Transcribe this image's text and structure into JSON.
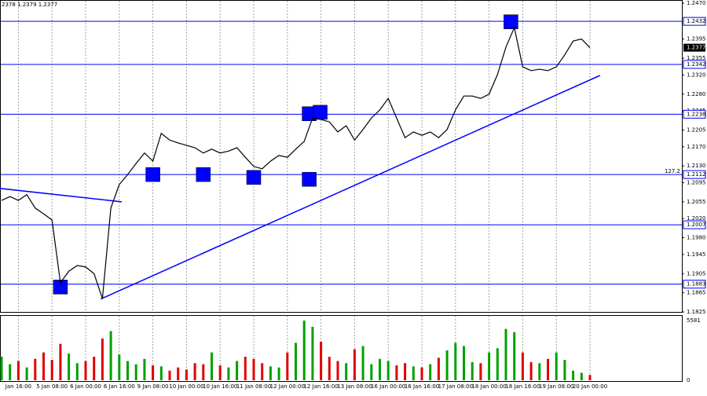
{
  "chart_data": {
    "type": "line",
    "header": "2378 1.2379 1.2377",
    "categories": [
      null,
      null,
      "Jan 16:00",
      null,
      null,
      null,
      "5 Jan 08:00",
      null,
      null,
      null,
      "6 Jan 00:00",
      null,
      null,
      null,
      "6 Jan 16:00",
      null,
      null,
      null,
      "9 Jan 08:00",
      null,
      null,
      null,
      "10 Jan 00:00",
      null,
      null,
      null,
      "10 Jan 16:00",
      null,
      null,
      null,
      "11 Jan 08:00",
      null,
      null,
      null,
      "12 Jan 00:00",
      null,
      null,
      null,
      "12 Jan 16:00",
      null,
      null,
      null,
      "13 Jan 08:00",
      null,
      null,
      null,
      "16 Jan 00:00",
      null,
      null,
      null,
      "16 Jan 16:00",
      null,
      null,
      null,
      "17 Jan 08:00",
      null,
      null,
      null,
      "18 Jan 00:00",
      null,
      null,
      null,
      "18 Jan 16:00",
      null,
      null,
      null,
      "19 Jan 08:00",
      null,
      null,
      null,
      "20 Jan 00:00"
    ],
    "values": [
      1.2058,
      1.2066,
      1.2058,
      1.207,
      1.2042,
      1.203,
      1.2017,
      1.1886,
      1.191,
      1.1922,
      1.1919,
      1.1905,
      1.1853,
      1.2042,
      1.2091,
      1.2112,
      1.2135,
      1.2157,
      1.214,
      1.2198,
      1.2184,
      1.2178,
      1.2173,
      1.2168,
      1.2157,
      1.2165,
      1.2157,
      1.2161,
      1.2168,
      1.2148,
      1.2129,
      1.2124,
      1.214,
      1.2152,
      1.2148,
      1.2165,
      1.2181,
      1.223,
      1.2227,
      1.2222,
      1.2201,
      1.2214,
      1.2184,
      1.2206,
      1.223,
      1.2247,
      1.2271,
      1.223,
      1.2189,
      1.2201,
      1.2194,
      1.2201,
      1.2189,
      1.2206,
      1.2247,
      1.2276,
      1.2276,
      1.2271,
      1.228,
      1.2321,
      1.2378,
      1.2419,
      1.2337,
      1.2329,
      1.2332,
      1.2329,
      1.2337,
      1.2362,
      1.2391,
      1.2395,
      1.2377
    ],
    "color": "#000000",
    "ylim": [
      1.1825,
      1.247
    ],
    "yticks": [
      {
        "value": 1.247,
        "label": "1.2470"
      },
      1.2395,
      1.2355,
      {
        "value": 1.232,
        "label": "1.2320"
      },
      {
        "value": 1.228,
        "label": "1.2280"
      },
      1.2245,
      1.2205,
      {
        "value": 1.217,
        "label": "1.2170"
      },
      {
        "value": 1.213,
        "label": "1.2130"
      },
      1.2095,
      1.2055,
      {
        "value": 1.202,
        "label": "1.2020"
      },
      {
        "value": 1.198,
        "label": "1.1980"
      },
      1.1945,
      1.1905,
      1.1865,
      1.1825
    ],
    "levels": [
      1.2432,
      1.2342,
      1.2238,
      1.2112,
      1.2007,
      1.1883
    ],
    "level_color": "#0000ff",
    "current_price": 1.2377,
    "annotation": "127.2",
    "markers": {
      "x": [
        7,
        18,
        24,
        30,
        36.6,
        36.6,
        37.9,
        60.6
      ],
      "y": [
        1.1877,
        1.2112,
        1.2112,
        1.2106,
        1.2102,
        1.2239,
        1.2242,
        1.2431
      ],
      "color": "#0000ff"
    },
    "trendlines": [
      {
        "x": [
          11.8,
          71.2
        ],
        "y": [
          1.1852,
          1.2319
        ]
      },
      {
        "x": [
          -0.2,
          14.3
        ],
        "y": [
          1.2083,
          1.2055
        ]
      }
    ],
    "volume": [
      2200,
      1500,
      1800,
      1200,
      2000,
      2600,
      1900,
      3400,
      2500,
      1600,
      1800,
      2200,
      3900,
      4600,
      2400,
      1800,
      1500,
      2000,
      1400,
      1300,
      900,
      1200,
      1000,
      1600,
      1500,
      2600,
      1400,
      1200,
      1800,
      2200,
      2000,
      1600,
      1300,
      1200,
      2600,
      3500,
      5581,
      5000,
      3600,
      2200,
      1800,
      1600,
      2900,
      3200,
      1500,
      2000,
      1800,
      1400,
      1600,
      1300,
      1200,
      1500,
      2100,
      2800,
      3500,
      3200,
      1700,
      1600,
      2600,
      3000,
      4800,
      4500,
      2600,
      1700,
      1600,
      2000,
      2600,
      1900,
      900,
      700,
      500
    ],
    "volume_ylim": [
      0,
      5581
    ],
    "volume_yticks": [
      0,
      5581
    ],
    "up_color": "#00a000",
    "down_color": "#e00000",
    "grid": true
  }
}
